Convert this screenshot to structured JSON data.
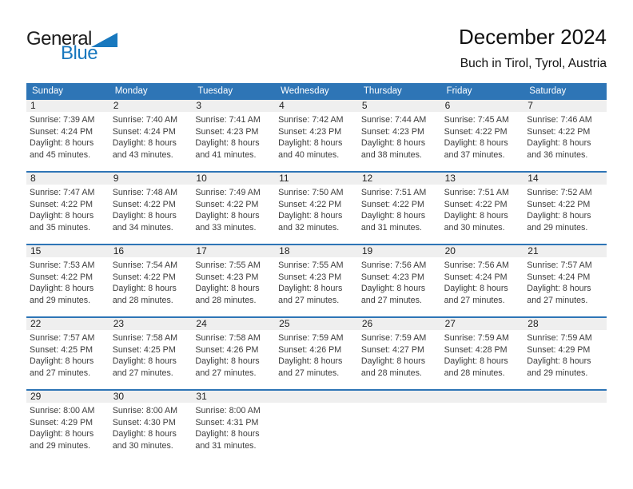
{
  "logo": {
    "text_top": "General",
    "text_bottom": "Blue"
  },
  "page_header": {
    "title": "December 2024",
    "location": "Buch in Tirol, Tyrol, Austria"
  },
  "colors": {
    "accent_blue": "#2E75B6",
    "logo_blue": "#1878BE",
    "band_gray": "#EFEFEF"
  },
  "calendar": {
    "day_headers": [
      "Sunday",
      "Monday",
      "Tuesday",
      "Wednesday",
      "Thursday",
      "Friday",
      "Saturday"
    ],
    "weeks": [
      [
        {
          "n": "1",
          "lines": [
            "Sunrise: 7:39 AM",
            "Sunset: 4:24 PM",
            "Daylight: 8 hours",
            "and 45 minutes."
          ]
        },
        {
          "n": "2",
          "lines": [
            "Sunrise: 7:40 AM",
            "Sunset: 4:24 PM",
            "Daylight: 8 hours",
            "and 43 minutes."
          ]
        },
        {
          "n": "3",
          "lines": [
            "Sunrise: 7:41 AM",
            "Sunset: 4:23 PM",
            "Daylight: 8 hours",
            "and 41 minutes."
          ]
        },
        {
          "n": "4",
          "lines": [
            "Sunrise: 7:42 AM",
            "Sunset: 4:23 PM",
            "Daylight: 8 hours",
            "and 40 minutes."
          ]
        },
        {
          "n": "5",
          "lines": [
            "Sunrise: 7:44 AM",
            "Sunset: 4:23 PM",
            "Daylight: 8 hours",
            "and 38 minutes."
          ]
        },
        {
          "n": "6",
          "lines": [
            "Sunrise: 7:45 AM",
            "Sunset: 4:22 PM",
            "Daylight: 8 hours",
            "and 37 minutes."
          ]
        },
        {
          "n": "7",
          "lines": [
            "Sunrise: 7:46 AM",
            "Sunset: 4:22 PM",
            "Daylight: 8 hours",
            "and 36 minutes."
          ]
        }
      ],
      [
        {
          "n": "8",
          "lines": [
            "Sunrise: 7:47 AM",
            "Sunset: 4:22 PM",
            "Daylight: 8 hours",
            "and 35 minutes."
          ]
        },
        {
          "n": "9",
          "lines": [
            "Sunrise: 7:48 AM",
            "Sunset: 4:22 PM",
            "Daylight: 8 hours",
            "and 34 minutes."
          ]
        },
        {
          "n": "10",
          "lines": [
            "Sunrise: 7:49 AM",
            "Sunset: 4:22 PM",
            "Daylight: 8 hours",
            "and 33 minutes."
          ]
        },
        {
          "n": "11",
          "lines": [
            "Sunrise: 7:50 AM",
            "Sunset: 4:22 PM",
            "Daylight: 8 hours",
            "and 32 minutes."
          ]
        },
        {
          "n": "12",
          "lines": [
            "Sunrise: 7:51 AM",
            "Sunset: 4:22 PM",
            "Daylight: 8 hours",
            "and 31 minutes."
          ]
        },
        {
          "n": "13",
          "lines": [
            "Sunrise: 7:51 AM",
            "Sunset: 4:22 PM",
            "Daylight: 8 hours",
            "and 30 minutes."
          ]
        },
        {
          "n": "14",
          "lines": [
            "Sunrise: 7:52 AM",
            "Sunset: 4:22 PM",
            "Daylight: 8 hours",
            "and 29 minutes."
          ]
        }
      ],
      [
        {
          "n": "15",
          "lines": [
            "Sunrise: 7:53 AM",
            "Sunset: 4:22 PM",
            "Daylight: 8 hours",
            "and 29 minutes."
          ]
        },
        {
          "n": "16",
          "lines": [
            "Sunrise: 7:54 AM",
            "Sunset: 4:22 PM",
            "Daylight: 8 hours",
            "and 28 minutes."
          ]
        },
        {
          "n": "17",
          "lines": [
            "Sunrise: 7:55 AM",
            "Sunset: 4:23 PM",
            "Daylight: 8 hours",
            "and 28 minutes."
          ]
        },
        {
          "n": "18",
          "lines": [
            "Sunrise: 7:55 AM",
            "Sunset: 4:23 PM",
            "Daylight: 8 hours",
            "and 27 minutes."
          ]
        },
        {
          "n": "19",
          "lines": [
            "Sunrise: 7:56 AM",
            "Sunset: 4:23 PM",
            "Daylight: 8 hours",
            "and 27 minutes."
          ]
        },
        {
          "n": "20",
          "lines": [
            "Sunrise: 7:56 AM",
            "Sunset: 4:24 PM",
            "Daylight: 8 hours",
            "and 27 minutes."
          ]
        },
        {
          "n": "21",
          "lines": [
            "Sunrise: 7:57 AM",
            "Sunset: 4:24 PM",
            "Daylight: 8 hours",
            "and 27 minutes."
          ]
        }
      ],
      [
        {
          "n": "22",
          "lines": [
            "Sunrise: 7:57 AM",
            "Sunset: 4:25 PM",
            "Daylight: 8 hours",
            "and 27 minutes."
          ]
        },
        {
          "n": "23",
          "lines": [
            "Sunrise: 7:58 AM",
            "Sunset: 4:25 PM",
            "Daylight: 8 hours",
            "and 27 minutes."
          ]
        },
        {
          "n": "24",
          "lines": [
            "Sunrise: 7:58 AM",
            "Sunset: 4:26 PM",
            "Daylight: 8 hours",
            "and 27 minutes."
          ]
        },
        {
          "n": "25",
          "lines": [
            "Sunrise: 7:59 AM",
            "Sunset: 4:26 PM",
            "Daylight: 8 hours",
            "and 27 minutes."
          ]
        },
        {
          "n": "26",
          "lines": [
            "Sunrise: 7:59 AM",
            "Sunset: 4:27 PM",
            "Daylight: 8 hours",
            "and 28 minutes."
          ]
        },
        {
          "n": "27",
          "lines": [
            "Sunrise: 7:59 AM",
            "Sunset: 4:28 PM",
            "Daylight: 8 hours",
            "and 28 minutes."
          ]
        },
        {
          "n": "28",
          "lines": [
            "Sunrise: 7:59 AM",
            "Sunset: 4:29 PM",
            "Daylight: 8 hours",
            "and 29 minutes."
          ]
        }
      ],
      [
        {
          "n": "29",
          "lines": [
            "Sunrise: 8:00 AM",
            "Sunset: 4:29 PM",
            "Daylight: 8 hours",
            "and 29 minutes."
          ]
        },
        {
          "n": "30",
          "lines": [
            "Sunrise: 8:00 AM",
            "Sunset: 4:30 PM",
            "Daylight: 8 hours",
            "and 30 minutes."
          ]
        },
        {
          "n": "31",
          "lines": [
            "Sunrise: 8:00 AM",
            "Sunset: 4:31 PM",
            "Daylight: 8 hours",
            "and 31 minutes."
          ]
        },
        null,
        null,
        null,
        null
      ]
    ]
  }
}
